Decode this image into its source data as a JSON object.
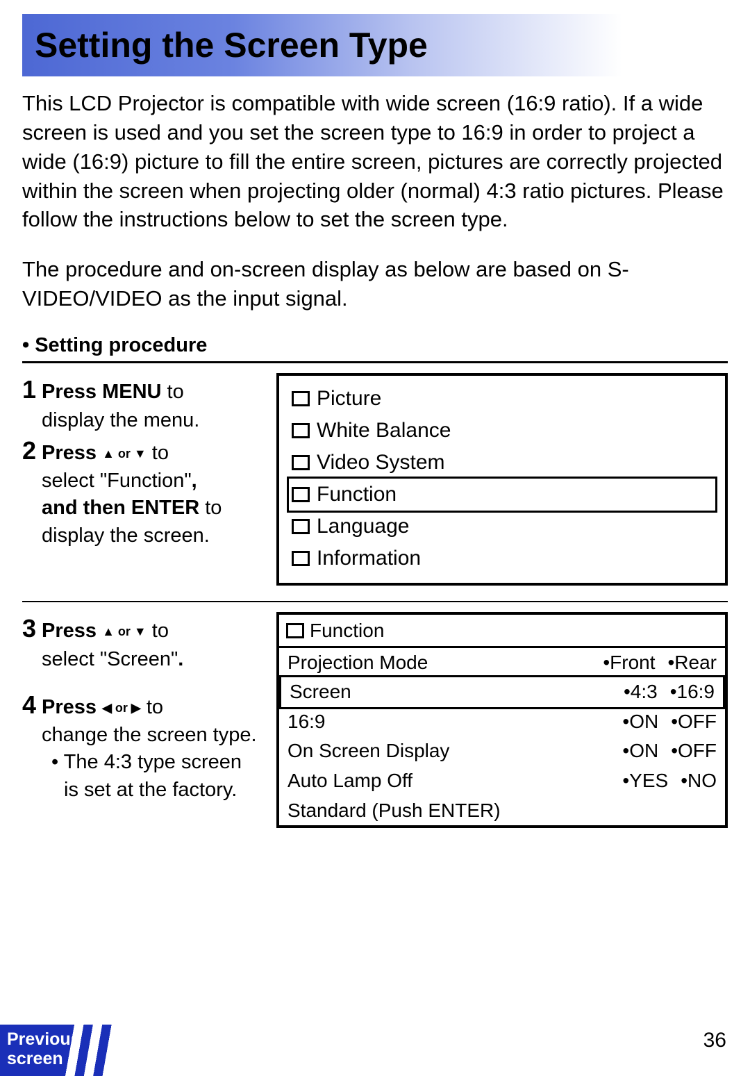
{
  "title": "Setting the Screen Type",
  "intro_p1": "This LCD Projector is compatible with wide screen (16:9 ratio). If a wide screen is used and you set the screen type to 16:9 in order to project a wide (16:9) picture to fill the entire screen, pictures are correctly projected within the screen when projecting older (normal) 4:3 ratio pictures. Please follow the instructions below to set the screen type.",
  "intro_p2": "The procedure and on-screen display as below are based on S-VIDEO/VIDEO as the input signal.",
  "section_heading": "• Setting procedure",
  "steps": {
    "s1": {
      "num": "1",
      "b1": "Press MENU",
      "t1": " to",
      "t2": "display the menu."
    },
    "s2": {
      "num": "2",
      "b1": "Press ",
      "arrows": "▲ or ▼",
      "t1": " to",
      "t2": "select \"Function\"",
      "b2": ",",
      "b3": "and then ENTER",
      "t3": " to",
      "t4": "display the screen."
    },
    "s3": {
      "num": "3",
      "b1": "Press ",
      "arrows": "▲ or ▼",
      "t1": " to",
      "t2": "select \"Screen\"",
      "b2": "."
    },
    "s4": {
      "num": "4",
      "b1": "Press ",
      "arrows": "◀ or ▶",
      "t1": " to",
      "t2": "change the screen type.",
      "note": "• The 4:3 type screen is set at the factory."
    }
  },
  "menu": {
    "items": [
      "Picture",
      "White Balance",
      "Video System",
      "Function",
      "Language",
      "Information"
    ],
    "selected_index": 3
  },
  "func": {
    "title": "Function",
    "rows": [
      {
        "label": "Projection Mode",
        "opts": [
          "•Front",
          "•Rear"
        ],
        "selected": false
      },
      {
        "label": "Screen",
        "opts": [
          "•4:3",
          "•16:9"
        ],
        "selected": true
      },
      {
        "label": "16:9",
        "opts": [
          "•ON",
          "•OFF"
        ],
        "selected": false
      },
      {
        "label": "On Screen Display",
        "opts": [
          "•ON",
          "•OFF"
        ],
        "selected": false
      },
      {
        "label": "Auto Lamp Off",
        "opts": [
          "•YES",
          "•NO"
        ],
        "selected": false
      },
      {
        "label": "Standard (Push ENTER)",
        "opts": [],
        "selected": false
      }
    ]
  },
  "footer": {
    "prev1": "Previous",
    "prev2": "screen",
    "page": "36"
  }
}
